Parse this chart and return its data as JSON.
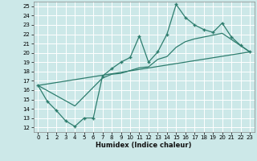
{
  "xlabel": "Humidex (Indice chaleur)",
  "background_color": "#cce8e8",
  "line_color": "#2e7d6e",
  "grid_color": "#ffffff",
  "xlim": [
    -0.5,
    23.5
  ],
  "ylim": [
    11.5,
    25.5
  ],
  "xticks": [
    0,
    1,
    2,
    3,
    4,
    5,
    6,
    7,
    8,
    9,
    10,
    11,
    12,
    13,
    14,
    15,
    16,
    17,
    18,
    19,
    20,
    21,
    22,
    23
  ],
  "yticks": [
    12,
    13,
    14,
    15,
    16,
    17,
    18,
    19,
    20,
    21,
    22,
    23,
    24,
    25
  ],
  "line1_x": [
    0,
    1,
    2,
    3,
    4,
    5,
    6,
    7,
    8,
    9,
    10,
    11,
    12,
    13,
    14,
    15,
    16,
    17,
    18,
    19,
    20,
    21,
    22,
    23
  ],
  "line1_y": [
    16.5,
    14.8,
    13.8,
    12.7,
    12.1,
    13.0,
    13.0,
    17.5,
    18.3,
    19.0,
    19.5,
    21.8,
    19.0,
    20.1,
    22.0,
    25.2,
    23.8,
    23.0,
    22.5,
    22.2,
    23.2,
    21.7,
    20.8,
    20.1
  ],
  "line2_x": [
    0,
    23
  ],
  "line2_y": [
    16.5,
    20.1
  ],
  "line3_x": [
    0,
    4,
    7,
    8,
    9,
    10,
    11,
    12,
    13,
    14,
    15,
    16,
    17,
    18,
    19,
    20,
    23
  ],
  "line3_y": [
    16.5,
    14.3,
    17.3,
    17.7,
    17.8,
    18.1,
    18.4,
    18.5,
    19.3,
    19.6,
    20.6,
    21.2,
    21.5,
    21.7,
    21.9,
    22.1,
    20.1
  ]
}
